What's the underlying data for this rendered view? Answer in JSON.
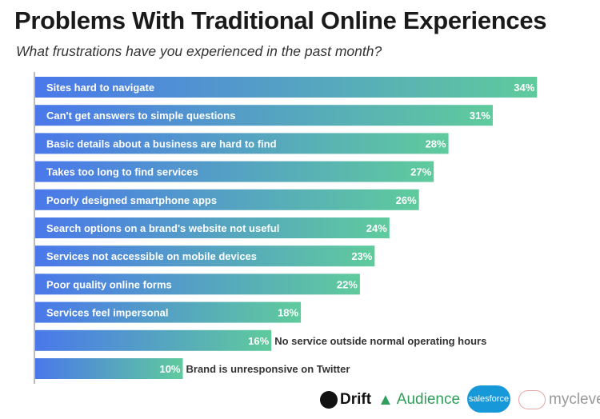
{
  "chart_data": {
    "type": "bar",
    "orientation": "horizontal",
    "title": "Problems With Traditional Online Experiences",
    "subtitle": "What frustrations have you experienced in the past month?",
    "categories": [
      "Sites hard to navigate",
      "Can't get answers to simple questions",
      "Basic details about a business are hard to find",
      "Takes too long to find services",
      "Poorly designed smartphone apps",
      "Search options on a brand's website not useful",
      "Services not accessible on mobile devices",
      "Poor quality online forms",
      "Services feel impersonal",
      "No service outside normal operating hours",
      "Brand is unresponsive on Twitter"
    ],
    "values": [
      34,
      31,
      28,
      27,
      26,
      24,
      23,
      22,
      18,
      16,
      10
    ],
    "value_labels": [
      "34%",
      "31%",
      "28%",
      "27%",
      "26%",
      "24%",
      "23%",
      "22%",
      "18%",
      "16%",
      "10%"
    ],
    "unit": "%",
    "grid": false,
    "gradient": [
      "#4a78ea",
      "#5fcb9c"
    ]
  },
  "logos": {
    "drift": "Drift",
    "audience": "Audience",
    "salesforce": "salesforce",
    "myclever": "myclever"
  }
}
